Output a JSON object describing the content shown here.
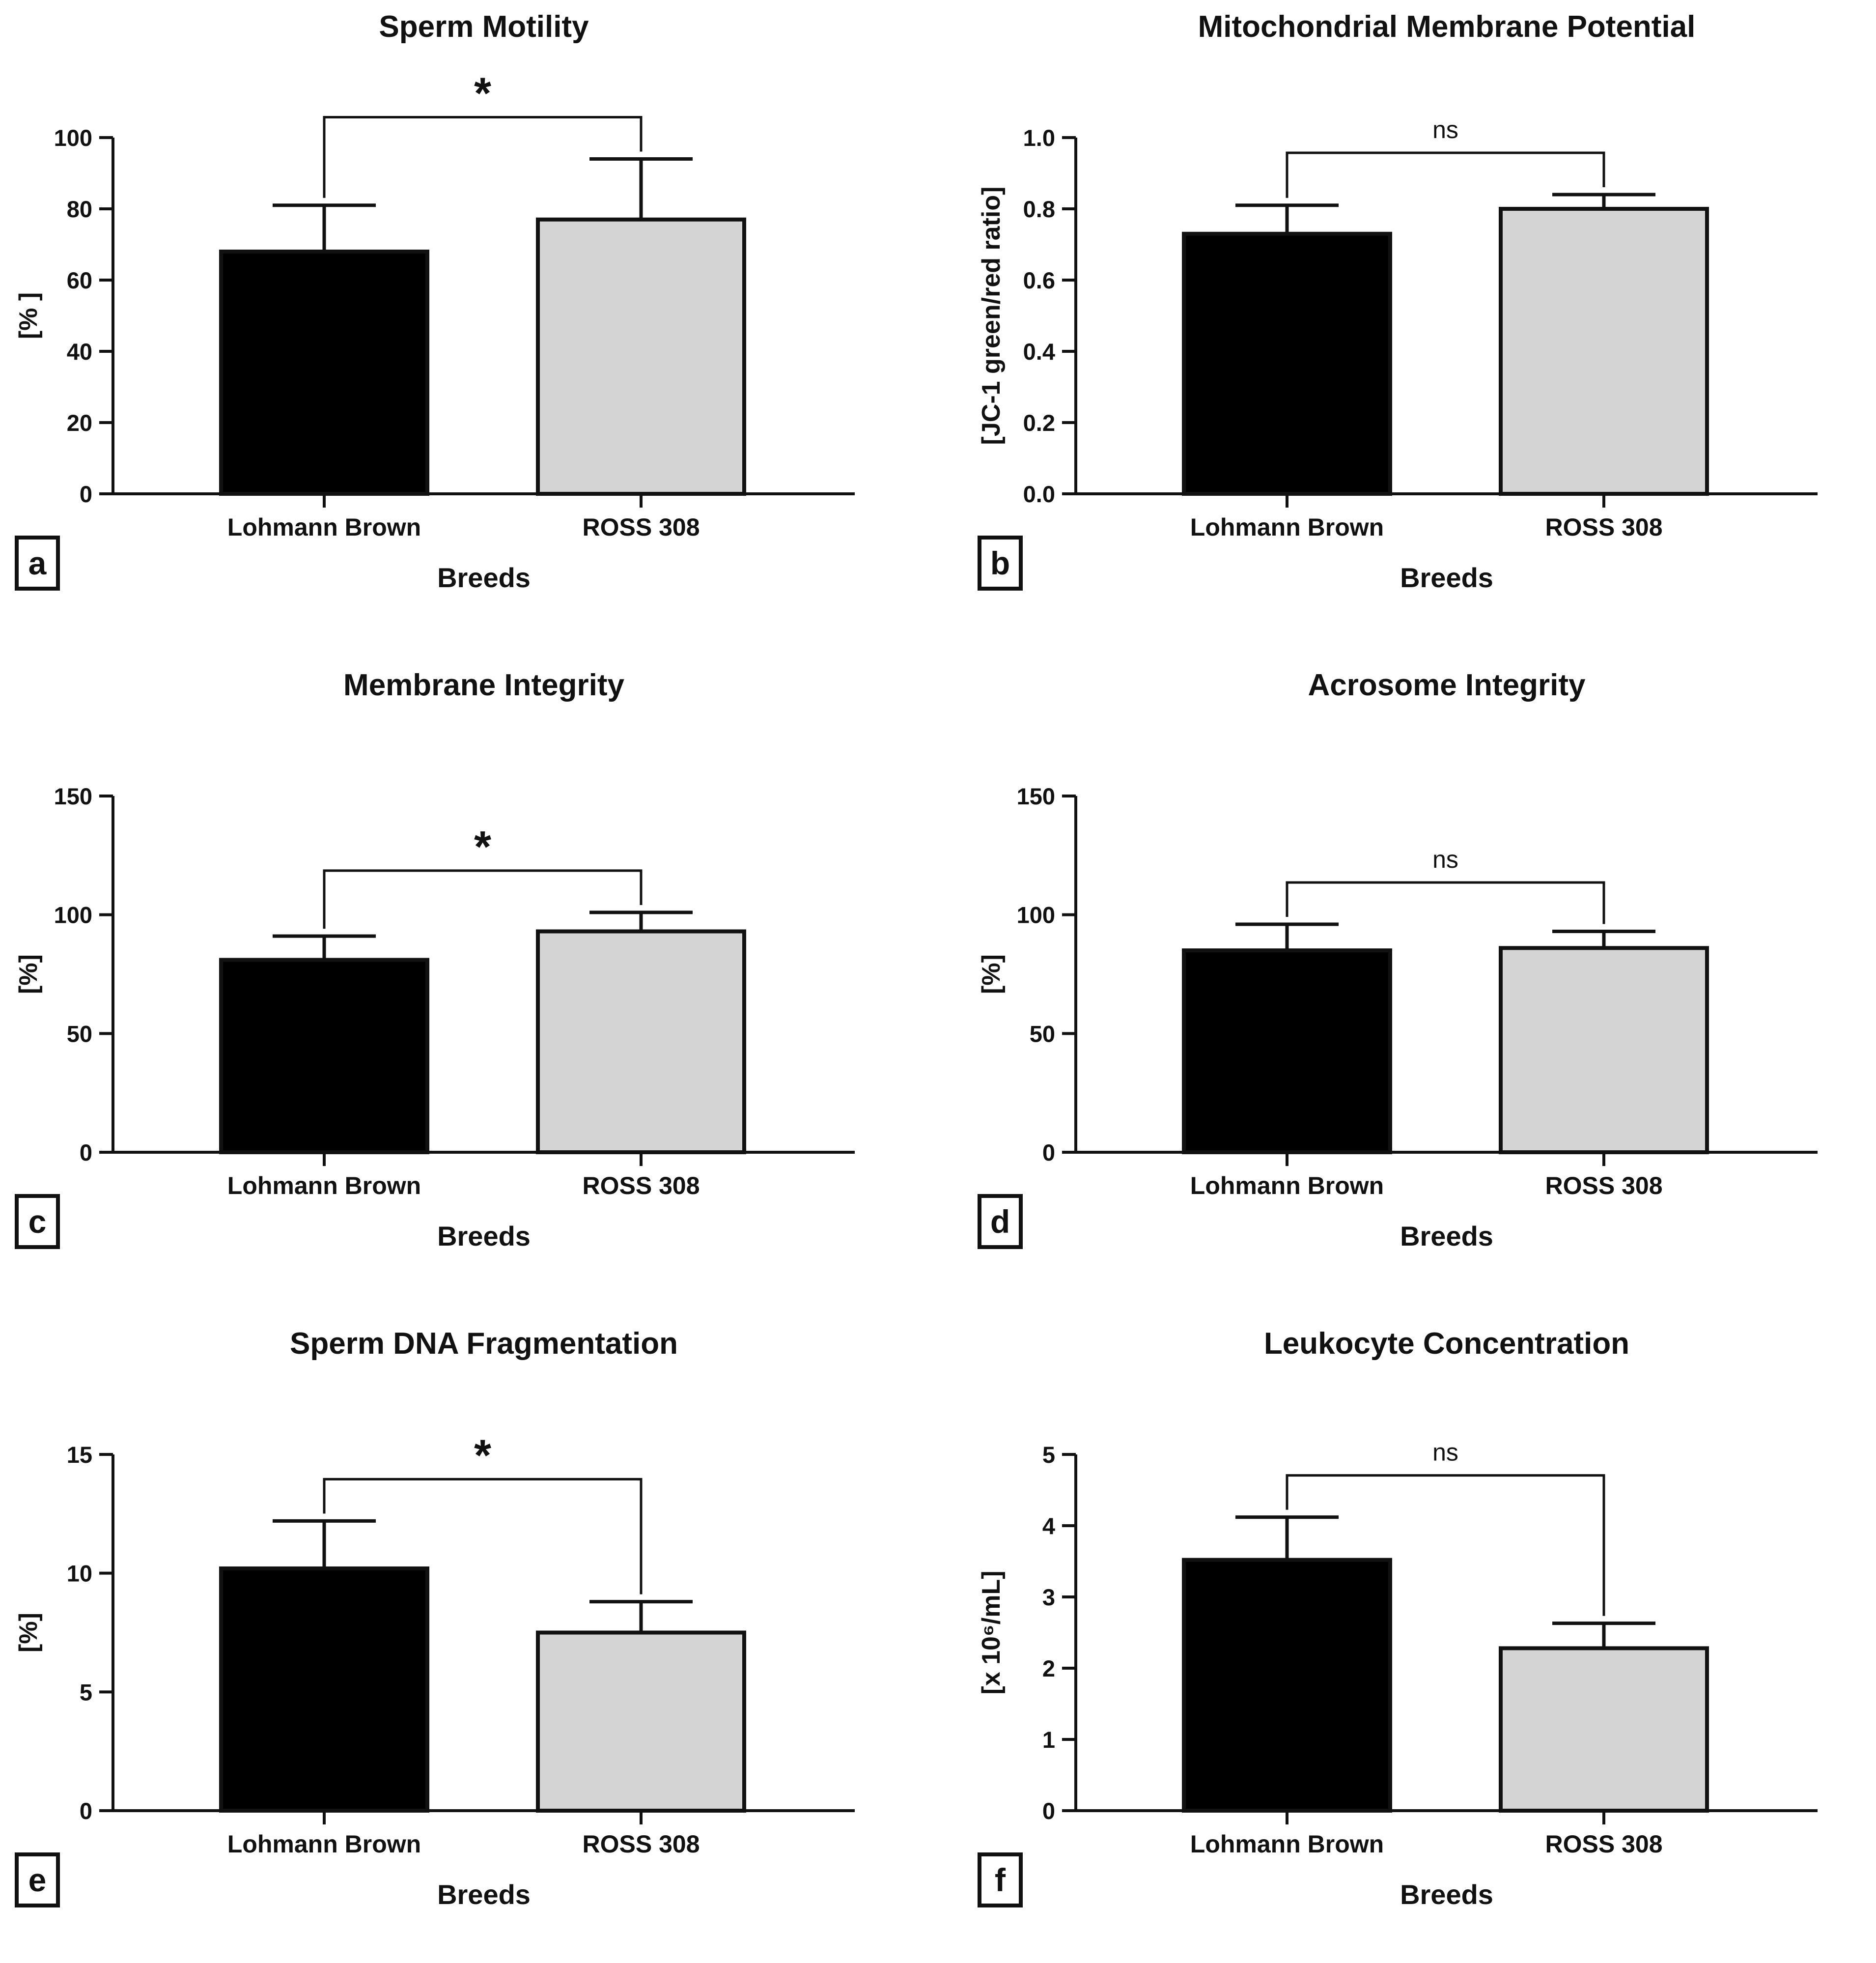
{
  "colors": {
    "lohmann": "#000000",
    "ross": "#d4d4d4",
    "stroke": "#111111"
  },
  "chart_data": [
    {
      "panel_letter": "a",
      "type": "bar",
      "title": "Sperm Motility",
      "xlabel": "Breeds",
      "ylabel": "[% ]",
      "categories": [
        "Lohmann Brown",
        "ROSS 308"
      ],
      "values": [
        68,
        77
      ],
      "errors": [
        13,
        17
      ],
      "ylim": [
        0,
        100
      ],
      "yticks": [
        "0",
        "20",
        "40",
        "60",
        "80",
        "100"
      ],
      "ytick_values": [
        0,
        20,
        40,
        60,
        80,
        100
      ],
      "significance": "*"
    },
    {
      "panel_letter": "b",
      "type": "bar",
      "title": "Mitochondrial Membrane Potential",
      "xlabel": "Breeds",
      "ylabel": "[JC-1 green/red ratio]",
      "categories": [
        "Lohmann Brown",
        "ROSS 308"
      ],
      "values": [
        0.73,
        0.8
      ],
      "errors": [
        0.08,
        0.04
      ],
      "ylim": [
        0,
        1.0
      ],
      "yticks": [
        "0.0",
        "0.2",
        "0.4",
        "0.6",
        "0.8",
        "1.0"
      ],
      "ytick_values": [
        0,
        0.2,
        0.4,
        0.6,
        0.8,
        1.0
      ],
      "significance": "ns"
    },
    {
      "panel_letter": "c",
      "type": "bar",
      "title": "Membrane Integrity",
      "xlabel": "Breeds",
      "ylabel": "[%]",
      "categories": [
        "Lohmann Brown",
        "ROSS 308"
      ],
      "values": [
        81,
        93
      ],
      "errors": [
        10,
        8
      ],
      "ylim": [
        0,
        150
      ],
      "yticks": [
        "0",
        "50",
        "100",
        "150"
      ],
      "ytick_values": [
        0,
        50,
        100,
        150
      ],
      "significance": "*"
    },
    {
      "panel_letter": "d",
      "type": "bar",
      "title": "Acrosome Integrity",
      "xlabel": "Breeds",
      "ylabel": "[%]",
      "categories": [
        "Lohmann Brown",
        "ROSS 308"
      ],
      "values": [
        85,
        86
      ],
      "errors": [
        11,
        7
      ],
      "ylim": [
        0,
        150
      ],
      "yticks": [
        "0",
        "50",
        "100",
        "150"
      ],
      "ytick_values": [
        0,
        50,
        100,
        150
      ],
      "significance": "ns"
    },
    {
      "panel_letter": "e",
      "type": "bar",
      "title": "Sperm DNA Fragmentation",
      "xlabel": "Breeds",
      "ylabel": "[%]",
      "categories": [
        "Lohmann Brown",
        "ROSS 308"
      ],
      "values": [
        10.2,
        7.5
      ],
      "errors": [
        2.0,
        1.3
      ],
      "ylim": [
        0,
        15
      ],
      "yticks": [
        "0",
        "5",
        "10",
        "15"
      ],
      "ytick_values": [
        0,
        5,
        10,
        15
      ],
      "significance": "*"
    },
    {
      "panel_letter": "f",
      "type": "bar",
      "title": "Leukocyte Concentration",
      "xlabel": "Breeds",
      "ylabel": "[x 10⁶/mL]",
      "categories": [
        "Lohmann Brown",
        "ROSS 308"
      ],
      "values": [
        3.52,
        2.28
      ],
      "errors": [
        0.6,
        0.35
      ],
      "ylim": [
        0,
        5
      ],
      "yticks": [
        "0",
        "1",
        "2",
        "3",
        "4",
        "5"
      ],
      "ytick_values": [
        0,
        1,
        2,
        3,
        4,
        5
      ],
      "significance": "ns"
    }
  ]
}
